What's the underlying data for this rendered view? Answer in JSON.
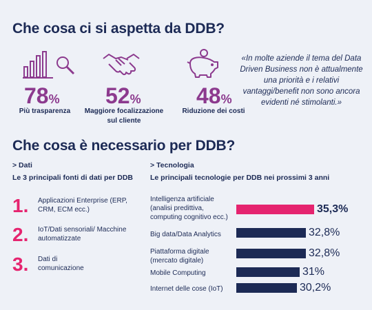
{
  "title1": "Che cosa ci si aspetta da DDB?",
  "stats": [
    {
      "value": "78",
      "unit": "%",
      "label": "Più trasparenza",
      "icon": "chart-search-icon"
    },
    {
      "value": "52",
      "unit": "%",
      "label": "Maggiore focalizzazione sul cliente",
      "icon": "handshake-icon"
    },
    {
      "value": "48",
      "unit": "%",
      "label": "Riduzione dei costi",
      "icon": "piggy-bank-icon"
    }
  ],
  "quote": "«In molte aziende il tema del Data Driven Business non è attualmente una priorità e i relativi vantaggi/benefit non sono ancora evidenti né stimolanti.»",
  "title2": "Che cosa è necessario per DDB?",
  "dati": {
    "heading": "> Dati",
    "subtitle": "Le 3 principali fonti di dati per DDB",
    "items": [
      {
        "num": "1.",
        "text": "Applicazioni Enterprise (ERP, CRM, ECM ecc.)"
      },
      {
        "num": "2.",
        "text": "IoT/Dati sensoriali/ Macchine automatizzate"
      },
      {
        "num": "3.",
        "text": "Dati di comunicazione"
      }
    ]
  },
  "tecnologia": {
    "heading": "> Tecnologia",
    "subtitle": "Le principali tecnologie per DDB nei prossimi 3 anni"
  },
  "chart_data": {
    "type": "bar",
    "orientation": "horizontal",
    "categories": [
      "Intelligenza artificiale (analisi predittiva, computing cognitivo ecc.)",
      "Big data/Data Analytics",
      "Piattaforma digitale (mercato digitale)",
      "Mobile Computing",
      "Internet delle cose (IoT)"
    ],
    "values": [
      35.3,
      32.8,
      32.8,
      31,
      30.2
    ],
    "value_labels": [
      "35,3%",
      "32,8%",
      "32,8%",
      "31%",
      "30,2%"
    ],
    "highlight_color": "#e5246f",
    "bar_color": "#1c2a55"
  }
}
